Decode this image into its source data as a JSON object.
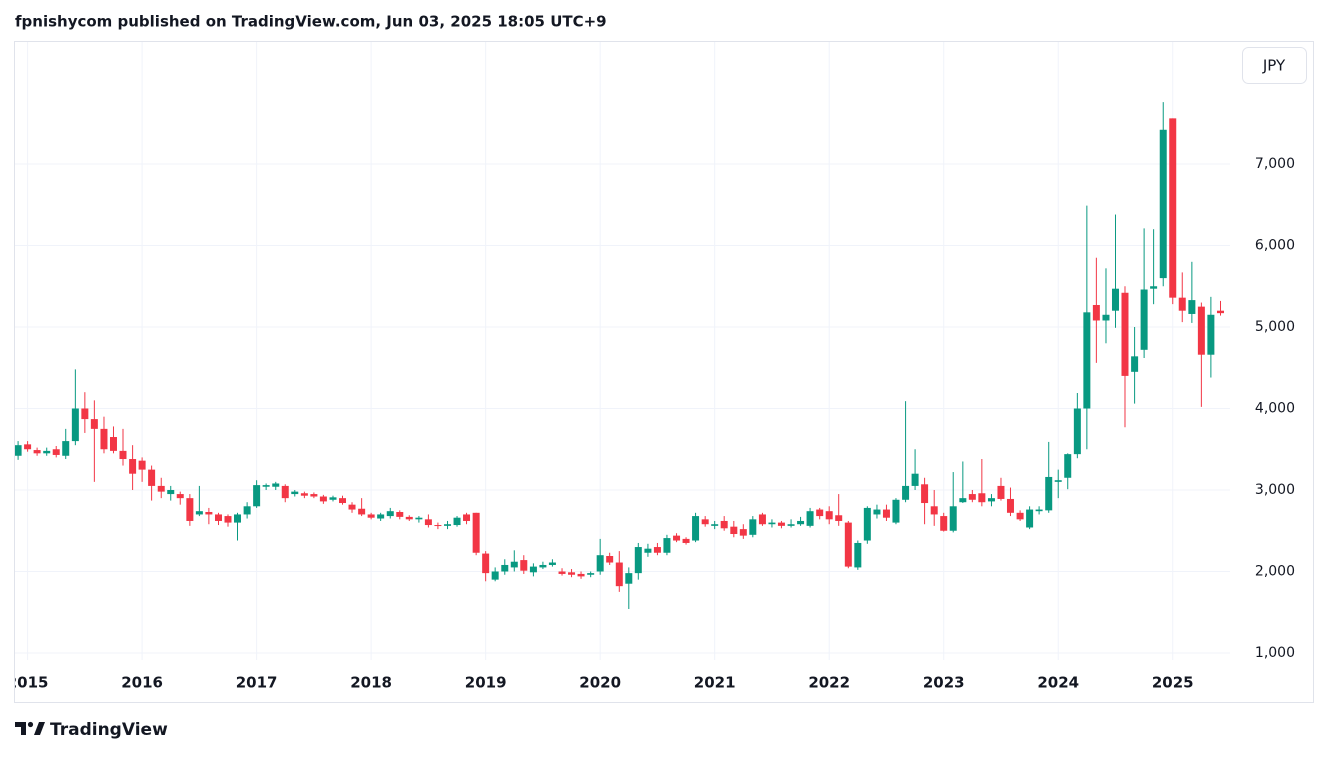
{
  "header": {
    "title": "fpnishycom published on TradingView.com, Jun 03, 2025 18:05 UTC+9"
  },
  "currency_button": "JPY",
  "footer": {
    "brand": "TradingView"
  },
  "chart_data": {
    "type": "candlestick",
    "x": [
      2014.917,
      2015,
      2015.083,
      2015.167,
      2015.25,
      2015.333,
      2015.417,
      2015.5,
      2015.583,
      2015.667,
      2015.75,
      2015.833,
      2015.917,
      2016,
      2016.083,
      2016.167,
      2016.25,
      2016.333,
      2016.417,
      2016.5,
      2016.583,
      2016.667,
      2016.75,
      2016.833,
      2016.917,
      2017,
      2017.083,
      2017.167,
      2017.25,
      2017.333,
      2017.417,
      2017.5,
      2017.583,
      2017.667,
      2017.75,
      2017.833,
      2017.917,
      2018,
      2018.083,
      2018.167,
      2018.25,
      2018.333,
      2018.417,
      2018.5,
      2018.583,
      2018.667,
      2018.75,
      2018.833,
      2018.917,
      2019,
      2019.083,
      2019.167,
      2019.25,
      2019.333,
      2019.417,
      2019.5,
      2019.583,
      2019.667,
      2019.75,
      2019.833,
      2019.917,
      2020,
      2020.083,
      2020.167,
      2020.25,
      2020.333,
      2020.417,
      2020.5,
      2020.583,
      2020.667,
      2020.75,
      2020.833,
      2020.917,
      2021,
      2021.083,
      2021.167,
      2021.25,
      2021.333,
      2021.417,
      2021.5,
      2021.583,
      2021.667,
      2021.75,
      2021.833,
      2021.917,
      2022,
      2022.083,
      2022.167,
      2022.25,
      2022.333,
      2022.417,
      2022.5,
      2022.583,
      2022.667,
      2022.75,
      2022.833,
      2022.917,
      2023,
      2023.083,
      2023.167,
      2023.25,
      2023.333,
      2023.417,
      2023.5,
      2023.583,
      2023.667,
      2023.75,
      2023.833,
      2023.917,
      2024,
      2024.083,
      2024.167,
      2024.25,
      2024.333,
      2024.417,
      2024.5,
      2024.583,
      2024.667,
      2024.75,
      2024.833,
      2024.917,
      2025,
      2025.083,
      2025.167,
      2025.25,
      2025.333,
      2025.417
    ],
    "open": [
      3420,
      3560,
      3490,
      3450,
      3500,
      3420,
      3600,
      4000,
      3870,
      3750,
      3650,
      3480,
      3380,
      3360,
      3250,
      3050,
      2950,
      2950,
      2900,
      2700,
      2730,
      2700,
      2680,
      2600,
      2700,
      2800,
      3040,
      3040,
      3050,
      2950,
      2960,
      2950,
      2920,
      2880,
      2900,
      2820,
      2770,
      2700,
      2650,
      2680,
      2730,
      2670,
      2640,
      2640,
      2570,
      2560,
      2570,
      2700,
      2720,
      2220,
      1900,
      2000,
      2050,
      2140,
      1990,
      2050,
      2080,
      2000,
      1990,
      1970,
      1960,
      2000,
      2190,
      2110,
      1850,
      1980,
      2230,
      2300,
      2230,
      2440,
      2400,
      2380,
      2640,
      2560,
      2620,
      2550,
      2520,
      2450,
      2700,
      2580,
      2600,
      2560,
      2580,
      2560,
      2760,
      2740,
      2690,
      2600,
      2050,
      2380,
      2700,
      2760,
      2600,
      2880,
      3050,
      3070,
      2800,
      2680,
      2500,
      2850,
      2950,
      2960,
      2860,
      3050,
      2890,
      2720,
      2540,
      2740,
      2750,
      3100,
      3150,
      3440,
      4000,
      5270,
      5080,
      5200,
      5420,
      4450,
      4720,
      5470,
      5600,
      7560,
      5360,
      5160,
      5250,
      4660,
      5200
    ],
    "high": [
      3600,
      3600,
      3520,
      3520,
      3540,
      3750,
      4480,
      4200,
      4100,
      3900,
      3780,
      3750,
      3550,
      3400,
      3300,
      3150,
      3050,
      2980,
      2950,
      3050,
      2780,
      2720,
      2700,
      2720,
      2850,
      3120,
      3080,
      3100,
      3070,
      3000,
      2980,
      2970,
      2940,
      2930,
      2930,
      2850,
      2900,
      2720,
      2720,
      2780,
      2750,
      2690,
      2680,
      2700,
      2600,
      2620,
      2680,
      2720,
      2720,
      2250,
      2050,
      2150,
      2260,
      2200,
      2100,
      2120,
      2150,
      2040,
      2030,
      2000,
      2000,
      2400,
      2230,
      2250,
      2050,
      2350,
      2340,
      2350,
      2450,
      2470,
      2420,
      2720,
      2680,
      2620,
      2680,
      2620,
      2580,
      2680,
      2720,
      2640,
      2620,
      2640,
      2670,
      2780,
      2780,
      2800,
      2950,
      2620,
      2380,
      2800,
      2820,
      2820,
      2900,
      4090,
      3500,
      3150,
      3000,
      2720,
      3220,
      3350,
      3000,
      3380,
      2950,
      3150,
      3030,
      2750,
      2800,
      2800,
      3590,
      3250,
      3450,
      4190,
      6490,
      5850,
      5720,
      6380,
      5500,
      5000,
      6210,
      6200,
      7760,
      7560,
      5670,
      5800,
      5300,
      5370,
      5320
    ],
    "low": [
      3370,
      3470,
      3420,
      3420,
      3400,
      3380,
      3550,
      3700,
      3100,
      3450,
      3450,
      3300,
      3000,
      3100,
      2870,
      2900,
      2870,
      2820,
      2560,
      2680,
      2580,
      2570,
      2550,
      2380,
      2650,
      2780,
      3000,
      3000,
      2850,
      2920,
      2900,
      2900,
      2830,
      2860,
      2820,
      2720,
      2680,
      2640,
      2620,
      2650,
      2640,
      2620,
      2600,
      2540,
      2520,
      2520,
      2550,
      2580,
      2200,
      1880,
      1880,
      1960,
      2000,
      1970,
      1940,
      2030,
      2060,
      1950,
      1930,
      1910,
      1930,
      1960,
      2080,
      1750,
      1540,
      1900,
      2180,
      2200,
      2200,
      2360,
      2330,
      2360,
      2550,
      2520,
      2500,
      2420,
      2400,
      2420,
      2560,
      2540,
      2530,
      2540,
      2560,
      2540,
      2640,
      2580,
      2560,
      2040,
      2020,
      2340,
      2650,
      2620,
      2580,
      2850,
      3000,
      2580,
      2560,
      2490,
      2480,
      2840,
      2850,
      2800,
      2800,
      2870,
      2680,
      2620,
      2520,
      2700,
      2720,
      2900,
      3010,
      3390,
      3500,
      4560,
      4800,
      4990,
      3770,
      4060,
      4620,
      5280,
      5500,
      5280,
      5060,
      5050,
      4020,
      4380,
      5140
    ],
    "close": [
      3550,
      3500,
      3450,
      3480,
      3430,
      3600,
      4000,
      3870,
      3750,
      3500,
      3480,
      3380,
      3200,
      3250,
      3050,
      2980,
      3000,
      2900,
      2620,
      2740,
      2700,
      2620,
      2600,
      2700,
      2800,
      3060,
      3060,
      3080,
      2900,
      2980,
      2930,
      2920,
      2860,
      2910,
      2840,
      2760,
      2700,
      2660,
      2700,
      2740,
      2670,
      2640,
      2660,
      2570,
      2560,
      2580,
      2660,
      2620,
      2230,
      1980,
      2000,
      2080,
      2120,
      2010,
      2060,
      2080,
      2110,
      1970,
      1960,
      1940,
      1980,
      2200,
      2110,
      1820,
      1980,
      2300,
      2280,
      2230,
      2410,
      2380,
      2350,
      2680,
      2580,
      2580,
      2530,
      2460,
      2440,
      2640,
      2580,
      2600,
      2560,
      2580,
      2620,
      2740,
      2680,
      2640,
      2620,
      2060,
      2350,
      2780,
      2760,
      2660,
      2880,
      3050,
      3200,
      2840,
      2700,
      2500,
      2800,
      2900,
      2880,
      2850,
      2900,
      2890,
      2720,
      2640,
      2760,
      2760,
      3160,
      3120,
      3440,
      4000,
      5180,
      5080,
      5150,
      5470,
      4400,
      4640,
      5460,
      5500,
      7420,
      5360,
      5200,
      5330,
      4660,
      5150,
      5170
    ],
    "up_color": "#089981",
    "down_color": "#f23645",
    "xlim": [
      2014.89,
      2025.5
    ],
    "xticks": [
      2015,
      2016,
      2017,
      2018,
      2019,
      2020,
      2021,
      2022,
      2023,
      2024,
      2025
    ],
    "ylim": [
      914,
      8497
    ],
    "yticks": [
      {
        "value": 1000,
        "label": "1,000"
      },
      {
        "value": 2000,
        "label": "2,000"
      },
      {
        "value": 3000,
        "label": "3,000"
      },
      {
        "value": 4000,
        "label": "4,000"
      },
      {
        "value": 5000,
        "label": "5,000"
      },
      {
        "value": 6000,
        "label": "6,000"
      },
      {
        "value": 7000,
        "label": "7,000"
      }
    ],
    "grid": true
  }
}
